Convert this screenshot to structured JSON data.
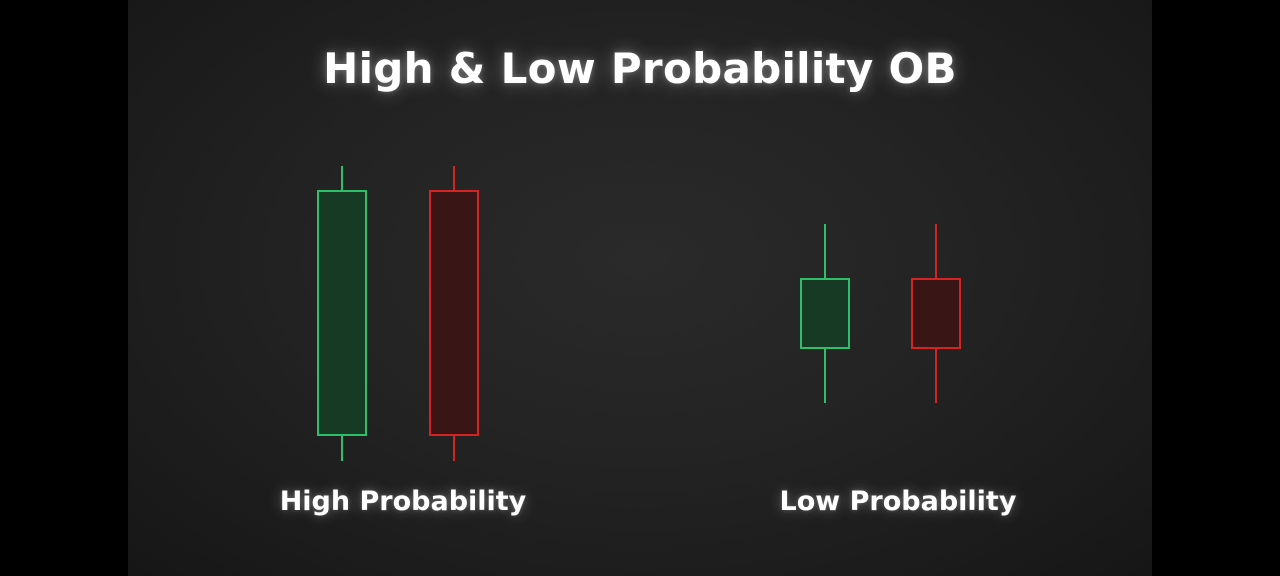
{
  "title": "High & Low Probability OB",
  "groups": [
    {
      "label": "High Probability",
      "candles": [
        {
          "direction": "bullish",
          "size": "large"
        },
        {
          "direction": "bearish",
          "size": "large"
        }
      ]
    },
    {
      "label": "Low Probability",
      "candles": [
        {
          "direction": "bullish",
          "size": "small"
        },
        {
          "direction": "bearish",
          "size": "small"
        }
      ]
    }
  ],
  "colors": {
    "bullish_stroke": "#2fbf6a",
    "bullish_fill": "#163a24",
    "bearish_stroke": "#d42323",
    "bearish_fill": "#3a1515",
    "text": "#ffffff"
  }
}
